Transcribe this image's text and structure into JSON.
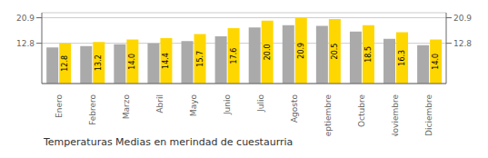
{
  "chart_data": {
    "type": "bar",
    "title": "Temperaturas Medias en merindad de cuestaurria",
    "categories": [
      "Enero",
      "Febrero",
      "Marzo",
      "Abril",
      "Mayo",
      "Junio",
      "Julio",
      "Agosto",
      "Septiembre",
      "Octubre",
      "Noviembre",
      "Diciembre"
    ],
    "series": [
      {
        "color": "#AAAAAA",
        "values": [
          11.5,
          11.9,
          12.5,
          12.8,
          13.5,
          15.0,
          17.8,
          18.5,
          18.3,
          16.5,
          14.2,
          12.2
        ]
      },
      {
        "color": "#FFD700",
        "values": [
          12.8,
          13.2,
          14.0,
          14.4,
          15.7,
          17.6,
          20.0,
          20.9,
          20.5,
          18.5,
          16.3,
          14.0
        ],
        "data_labels": true,
        "value_labels": [
          "12.8",
          "13.2",
          "14.0",
          "14.4",
          "15.7",
          "17.6",
          "20.0",
          "20.9",
          "20.5",
          "18.5",
          "16.3",
          "14.0"
        ]
      }
    ],
    "ylim": [
      0,
      22.5
    ],
    "yticks": [
      12.8,
      20.9
    ],
    "y2lim": [
      0,
      22.5
    ],
    "y2ticks": [
      12.8,
      20.9
    ],
    "grid": true
  }
}
